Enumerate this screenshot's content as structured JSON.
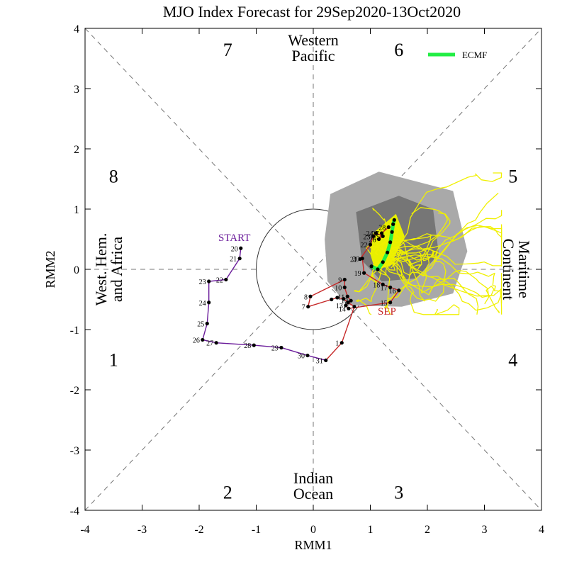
{
  "chart_data": {
    "type": "line",
    "title": "MJO Index Forecast for 29Sep2020-13Oct2020",
    "xlabel": "RMM1",
    "ylabel": "RMM2",
    "xlim": [
      -4,
      4
    ],
    "ylim": [
      -4,
      4
    ],
    "x_ticks": [
      "-4",
      "-3",
      "-2",
      "-1",
      "0",
      "1",
      "2",
      "3",
      "4"
    ],
    "y_ticks": [
      "4",
      "3",
      "2",
      "1",
      "0",
      "-1",
      "-2",
      "-3",
      "-4"
    ],
    "phases": [
      {
        "label": "1",
        "x": -3.5,
        "y": -1.5
      },
      {
        "label": "2",
        "x": -1.5,
        "y": -3.7
      },
      {
        "label": "3",
        "x": 1.5,
        "y": -3.7
      },
      {
        "label": "4",
        "x": 3.5,
        "y": -1.5
      },
      {
        "label": "5",
        "x": 3.5,
        "y": 1.55
      },
      {
        "label": "6",
        "x": 1.5,
        "y": 3.65
      },
      {
        "label": "7",
        "x": -1.5,
        "y": 3.65
      },
      {
        "label": "8",
        "x": -3.5,
        "y": 1.55
      }
    ],
    "regions": {
      "top": [
        "Western",
        "Pacific"
      ],
      "bottom": [
        "Indian",
        "Ocean"
      ],
      "left": [
        "West. Hem.",
        "and Africa"
      ],
      "right": [
        "Maritime",
        "Continent"
      ]
    },
    "annotations": [
      {
        "text": "START",
        "x": -1.05,
        "y": 0.5,
        "color": "#6a1b9a"
      },
      {
        "text": "SEP",
        "x": 1.45,
        "y": -0.72,
        "color": "#c62828"
      }
    ],
    "legend": {
      "position": "top-right",
      "entries": [
        {
          "name": "ECMF",
          "color": "#22ee44"
        }
      ]
    },
    "observed_august": {
      "color": "#6a1b9a",
      "points": [
        {
          "day": "20",
          "x": -1.27,
          "y": 0.35
        },
        {
          "day": "21",
          "x": -1.29,
          "y": 0.18
        },
        {
          "day": "22",
          "x": -1.53,
          "y": -0.17
        },
        {
          "day": "23",
          "x": -1.83,
          "y": -0.2
        },
        {
          "day": "24",
          "x": -1.83,
          "y": -0.55
        },
        {
          "day": "25",
          "x": -1.86,
          "y": -0.9
        },
        {
          "day": "26",
          "x": -1.94,
          "y": -1.17
        },
        {
          "day": "27",
          "x": -1.7,
          "y": -1.22
        },
        {
          "day": "28",
          "x": -1.04,
          "y": -1.26
        },
        {
          "day": "29",
          "x": -0.56,
          "y": -1.3
        },
        {
          "day": "30",
          "x": -0.1,
          "y": -1.43
        },
        {
          "day": "31",
          "x": 0.22,
          "y": -1.51
        }
      ]
    },
    "observed_september": {
      "color": "#c62828",
      "points": [
        {
          "day": "1",
          "x": 0.5,
          "y": -1.22
        },
        {
          "day": "",
          "x": 0.72,
          "y": -0.62
        },
        {
          "day": "",
          "x": 0.61,
          "y": -0.55
        },
        {
          "day": "",
          "x": 0.53,
          "y": -0.49
        },
        {
          "day": "",
          "x": 0.42,
          "y": -0.47
        },
        {
          "day": "",
          "x": 0.32,
          "y": -0.5
        },
        {
          "day": "7",
          "x": -0.09,
          "y": -0.62
        },
        {
          "day": "8",
          "x": -0.05,
          "y": -0.45
        },
        {
          "day": "9",
          "x": 0.55,
          "y": -0.17
        },
        {
          "day": "10",
          "x": 0.55,
          "y": -0.3
        },
        {
          "day": "11",
          "x": 0.6,
          "y": -0.45
        },
        {
          "day": "12",
          "x": 0.66,
          "y": -0.52
        },
        {
          "day": "13",
          "x": 0.57,
          "y": -0.6
        },
        {
          "day": "14",
          "x": 0.62,
          "y": -0.65
        },
        {
          "day": "15",
          "x": 1.35,
          "y": -0.55
        },
        {
          "day": "16",
          "x": 1.5,
          "y": -0.35
        },
        {
          "day": "17",
          "x": 1.35,
          "y": -0.3
        },
        {
          "day": "18",
          "x": 1.22,
          "y": -0.25
        },
        {
          "day": "19",
          "x": 0.89,
          "y": -0.06
        },
        {
          "day": "20",
          "x": 0.86,
          "y": 0.18
        },
        {
          "day": "21",
          "x": 0.82,
          "y": 0.17
        },
        {
          "day": "22",
          "x": 1.0,
          "y": 0.41
        },
        {
          "day": "23",
          "x": 1.05,
          "y": 0.55
        },
        {
          "day": "24",
          "x": 1.1,
          "y": 0.6
        },
        {
          "day": "25",
          "x": 1.22,
          "y": 0.55
        },
        {
          "day": "26",
          "x": 1.15,
          "y": 0.5
        },
        {
          "day": "27",
          "x": 1.2,
          "y": 0.6
        },
        {
          "day": "28",
          "x": 1.32,
          "y": 0.7
        }
      ]
    },
    "forecast_ensemble_mean": {
      "name": "ECMF",
      "color": "#22ee44",
      "points": [
        {
          "x": 1.02,
          "y": 0.05
        },
        {
          "x": 1.13,
          "y": 0.0
        },
        {
          "x": 1.22,
          "y": 0.12
        },
        {
          "x": 1.3,
          "y": 0.28
        },
        {
          "x": 1.35,
          "y": 0.45
        },
        {
          "x": 1.38,
          "y": 0.62
        },
        {
          "x": 1.4,
          "y": 0.75
        },
        {
          "x": 1.42,
          "y": 0.82
        }
      ]
    },
    "ensemble_envelope_90": [
      {
        "x": 0.3,
        "y": 1.25
      },
      {
        "x": 1.15,
        "y": 1.62
      },
      {
        "x": 2.45,
        "y": 1.3
      },
      {
        "x": 2.7,
        "y": 0.3
      },
      {
        "x": 2.45,
        "y": -0.4
      },
      {
        "x": 1.55,
        "y": -0.62
      },
      {
        "x": 0.6,
        "y": -0.6
      },
      {
        "x": 0.25,
        "y": -0.2
      },
      {
        "x": 0.2,
        "y": 0.5
      }
    ],
    "ensemble_envelope_50": [
      {
        "x": 0.75,
        "y": 0.95
      },
      {
        "x": 1.5,
        "y": 1.22
      },
      {
        "x": 2.1,
        "y": 1.0
      },
      {
        "x": 2.2,
        "y": 0.25
      },
      {
        "x": 1.8,
        "y": -0.15
      },
      {
        "x": 1.2,
        "y": -0.2
      },
      {
        "x": 0.85,
        "y": 0.15
      }
    ],
    "ensemble_core": [
      {
        "x": 1.05,
        "y": 0.6
      },
      {
        "x": 1.45,
        "y": 0.92
      },
      {
        "x": 1.6,
        "y": 0.55
      },
      {
        "x": 1.35,
        "y": 0.05
      },
      {
        "x": 1.08,
        "y": 0.0
      },
      {
        "x": 1.0,
        "y": 0.25
      }
    ]
  }
}
